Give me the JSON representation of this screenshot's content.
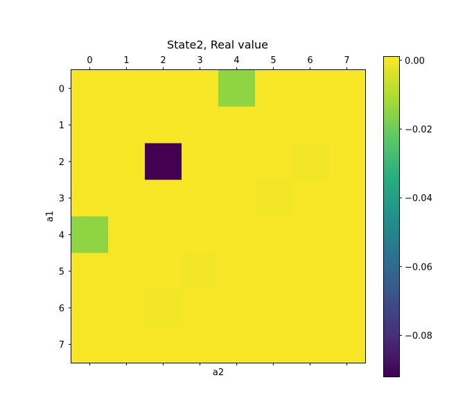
{
  "chart_data": {
    "type": "heatmap",
    "title": "State2, Real value",
    "xlabel": "a2",
    "ylabel": "a1",
    "x_ticks": [
      "0",
      "1",
      "2",
      "3",
      "4",
      "5",
      "6",
      "7"
    ],
    "y_ticks": [
      "0",
      "1",
      "2",
      "3",
      "4",
      "5",
      "6",
      "7"
    ],
    "values": [
      [
        0.0,
        0.0,
        0.0,
        0.0,
        -0.015,
        0.0,
        0.0,
        0.0
      ],
      [
        0.0,
        0.0,
        0.0,
        0.0,
        0.0,
        0.0,
        0.0,
        0.0
      ],
      [
        0.0,
        0.0,
        -0.092,
        0.0,
        0.0,
        0.0,
        -0.0005,
        0.0
      ],
      [
        0.0,
        0.0,
        0.0,
        0.0,
        0.0,
        -0.0005,
        0.0,
        0.0
      ],
      [
        -0.015,
        0.0,
        0.0,
        0.0,
        0.0,
        0.0,
        0.0,
        0.0
      ],
      [
        0.0,
        0.0,
        0.0,
        -0.0005,
        0.0,
        0.0,
        0.0,
        0.0
      ],
      [
        0.0,
        0.0,
        -0.0005,
        0.0,
        0.0,
        0.0,
        0.0,
        0.0
      ],
      [
        0.0,
        0.0,
        0.0,
        0.0,
        0.0,
        0.0,
        0.0,
        0.0
      ]
    ],
    "colormap": "viridis",
    "vmin": -0.092,
    "vmax": 0.001,
    "colorbar_ticks": [
      0.0,
      -0.02,
      -0.04,
      -0.06,
      -0.08
    ],
    "colorbar_tick_labels": [
      "0.00",
      "−0.02",
      "−0.04",
      "−0.06",
      "−0.08"
    ],
    "x_ticks_position": "top"
  }
}
